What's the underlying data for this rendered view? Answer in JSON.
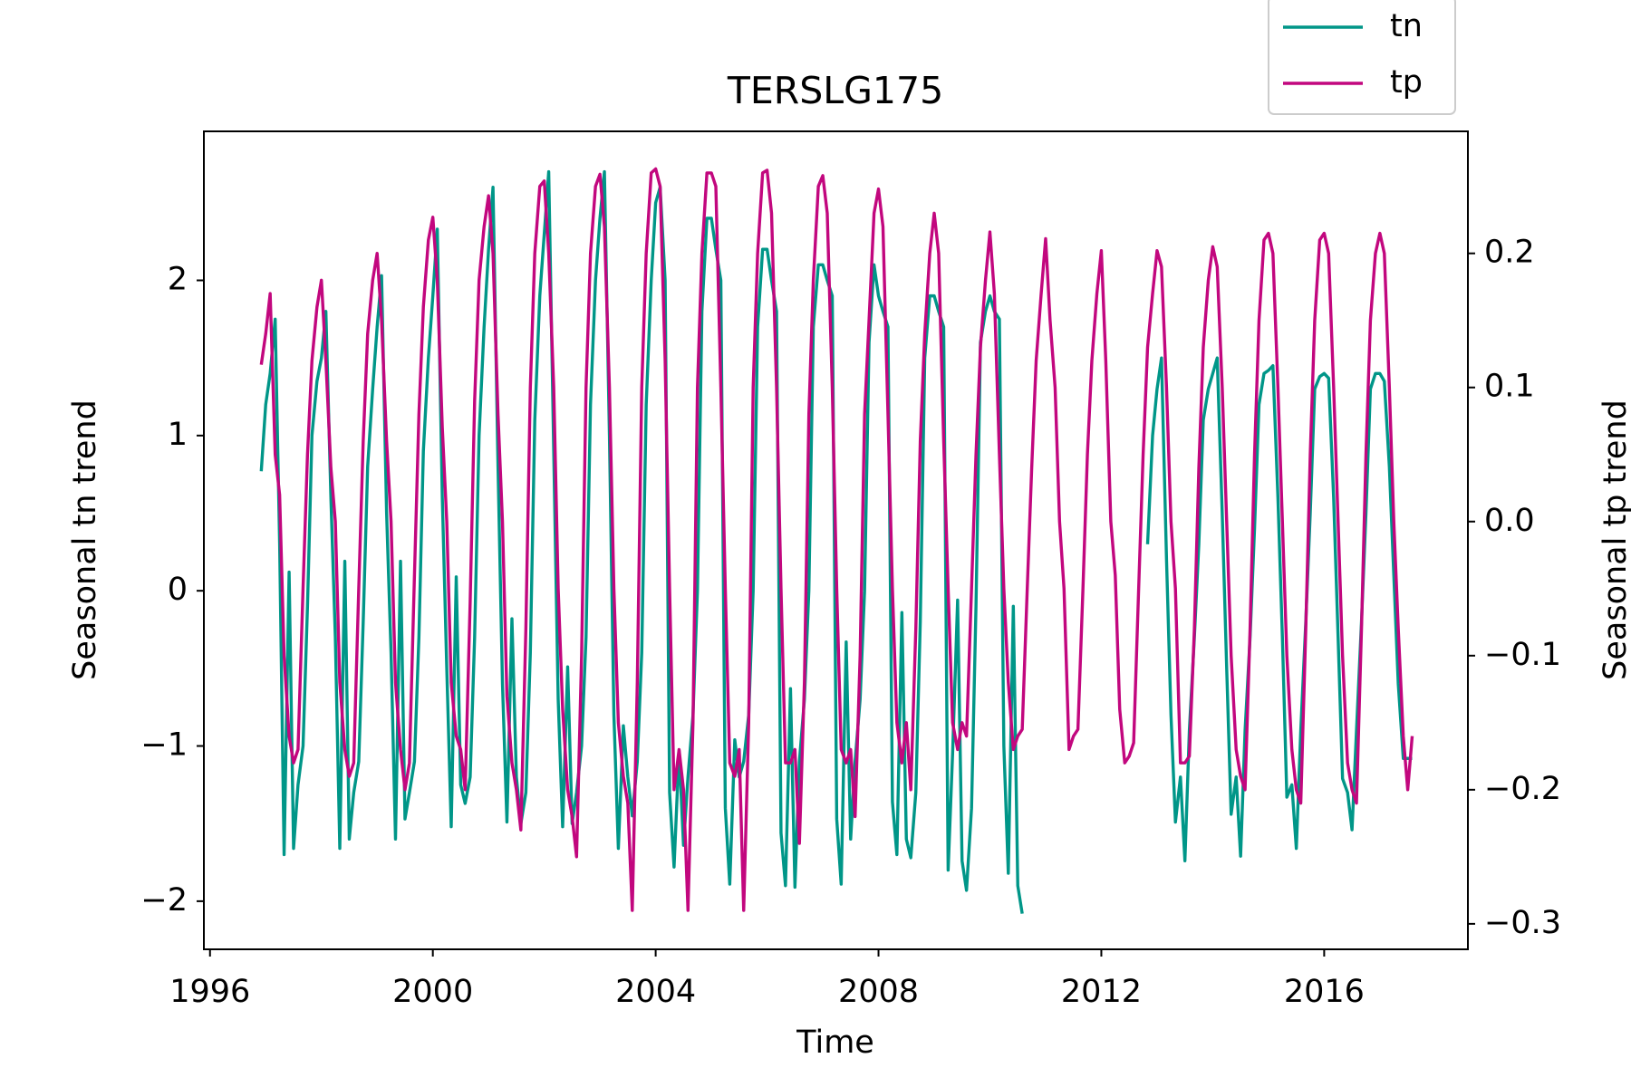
{
  "chart_data": {
    "type": "line",
    "title": "TERSLG175",
    "xlabel": "Time",
    "ylabel": "Seasonal tn trend",
    "y2label": "Seasonal tp trend",
    "legend": "upper right",
    "x": [
      1996.92,
      1997.0,
      1997.08,
      1997.17,
      1997.25,
      1997.33,
      1997.42,
      1997.5,
      1997.58,
      1997.67,
      1997.75,
      1997.83,
      1997.92,
      1998.0,
      1998.08,
      1998.17,
      1998.25,
      1998.33,
      1998.42,
      1998.5,
      1998.58,
      1998.67,
      1998.75,
      1998.83,
      1998.92,
      1999.0,
      1999.08,
      1999.17,
      1999.25,
      1999.33,
      1999.42,
      1999.5,
      1999.58,
      1999.67,
      1999.75,
      1999.83,
      1999.92,
      2000.0,
      2000.08,
      2000.17,
      2000.25,
      2000.33,
      2000.42,
      2000.5,
      2000.58,
      2000.67,
      2000.75,
      2000.83,
      2000.92,
      2001.0,
      2001.08,
      2001.17,
      2001.25,
      2001.33,
      2001.42,
      2001.5,
      2001.58,
      2001.67,
      2001.75,
      2001.83,
      2001.92,
      2002.0,
      2002.08,
      2002.17,
      2002.25,
      2002.33,
      2002.42,
      2002.5,
      2002.58,
      2002.67,
      2002.75,
      2002.83,
      2002.92,
      2003.0,
      2003.08,
      2003.17,
      2003.25,
      2003.33,
      2003.42,
      2003.5,
      2003.58,
      2003.67,
      2003.75,
      2003.83,
      2003.92,
      2004.0,
      2004.08,
      2004.17,
      2004.25,
      2004.33,
      2004.42,
      2004.5,
      2004.58,
      2004.67,
      2004.75,
      2004.83,
      2004.92,
      2005.0,
      2005.08,
      2005.17,
      2005.25,
      2005.33,
      2005.42,
      2005.5,
      2005.58,
      2005.67,
      2005.75,
      2005.83,
      2005.92,
      2006.0,
      2006.08,
      2006.17,
      2006.25,
      2006.33,
      2006.42,
      2006.5,
      2006.58,
      2006.67,
      2006.75,
      2006.83,
      2006.92,
      2007.0,
      2007.08,
      2007.17,
      2007.25,
      2007.33,
      2007.42,
      2007.5,
      2007.58,
      2007.67,
      2007.75,
      2007.83,
      2007.92,
      2008.0,
      2008.08,
      2008.17,
      2008.25,
      2008.33,
      2008.42,
      2008.5,
      2008.58,
      2008.67,
      2008.75,
      2008.83,
      2008.92,
      2009.0,
      2009.08,
      2009.17,
      2009.25,
      2009.33,
      2009.42,
      2009.5,
      2009.58,
      2009.67,
      2009.75,
      2009.83,
      2009.92,
      2010.0,
      2010.08,
      2010.17,
      2010.25,
      2010.33,
      2010.42,
      2010.5,
      2010.58,
      2010.67,
      2010.75,
      2010.83,
      2010.92,
      2011.0,
      2011.08,
      2011.17,
      2011.25,
      2011.33,
      2011.42,
      2011.5,
      2011.58,
      2011.67,
      2011.75,
      2011.83,
      2011.92,
      2012.0,
      2012.08,
      2012.17,
      2012.25,
      2012.33,
      2012.42,
      2012.5,
      2012.58,
      2012.67,
      2012.75,
      2012.83,
      2012.92,
      2013.0,
      2013.08,
      2013.17,
      2013.25,
      2013.33,
      2013.42,
      2013.5,
      2013.58,
      2013.67,
      2013.75,
      2013.83,
      2013.92,
      2014.0,
      2014.08,
      2014.17,
      2014.25,
      2014.33,
      2014.42,
      2014.5,
      2014.58,
      2014.67,
      2014.75,
      2014.83,
      2014.92,
      2015.0,
      2015.08,
      2015.17,
      2015.25,
      2015.33,
      2015.42,
      2015.5,
      2015.58,
      2015.67,
      2015.75,
      2015.83,
      2015.92,
      2016.0,
      2016.08,
      2016.17,
      2016.25,
      2016.33,
      2016.42,
      2016.5,
      2016.58,
      2016.67,
      2016.75,
      2016.83,
      2016.92,
      2017.0,
      2017.08,
      2017.17,
      2017.25,
      2017.33,
      2017.42,
      2017.5,
      2017.58
    ],
    "series": [
      {
        "name": "tn",
        "color": "#009688",
        "values": [
          0.77,
          1.2,
          1.4,
          1.75,
          0.3,
          -1.7,
          0.12,
          -1.66,
          -1.25,
          -1.0,
          -0.1,
          1.0,
          1.35,
          1.5,
          1.8,
          0.6,
          -0.3,
          -1.66,
          0.19,
          -1.6,
          -1.3,
          -1.1,
          -0.2,
          0.8,
          1.3,
          1.7,
          2.03,
          0.5,
          -0.4,
          -1.6,
          0.19,
          -1.47,
          -1.3,
          -1.1,
          -0.3,
          0.9,
          1.5,
          1.9,
          2.33,
          0.6,
          -0.5,
          -1.52,
          0.09,
          -1.25,
          -1.37,
          -1.2,
          -0.3,
          1.0,
          1.7,
          2.2,
          2.6,
          0.8,
          -0.6,
          -1.49,
          -0.18,
          -1.2,
          -1.5,
          -1.3,
          -0.4,
          1.1,
          1.9,
          2.3,
          2.7,
          0.9,
          -0.7,
          -1.52,
          -0.49,
          -1.5,
          -1.3,
          -1.0,
          -0.3,
          1.2,
          2.0,
          2.4,
          2.7,
          1.0,
          -0.8,
          -1.66,
          -0.87,
          -1.2,
          -1.45,
          -1.1,
          -0.4,
          1.2,
          2.0,
          2.5,
          2.6,
          2.0,
          -1.3,
          -1.78,
          -1.03,
          -1.64,
          -1.2,
          -0.8,
          0.0,
          1.8,
          2.4,
          2.4,
          2.2,
          2.0,
          -1.4,
          -1.89,
          -0.96,
          -1.2,
          -1.1,
          -0.8,
          0.0,
          1.7,
          2.2,
          2.2,
          2.0,
          1.8,
          -1.56,
          -1.9,
          -0.63,
          -1.91,
          -1.1,
          -0.7,
          0.0,
          1.7,
          2.1,
          2.1,
          2.0,
          1.9,
          -1.47,
          -1.89,
          -0.33,
          -1.6,
          -1.1,
          -0.7,
          0.0,
          1.6,
          2.1,
          1.9,
          1.8,
          1.7,
          -1.36,
          -1.7,
          -0.14,
          -1.6,
          -1.72,
          -1.3,
          -0.2,
          1.5,
          1.9,
          1.9,
          1.8,
          1.7,
          -1.8,
          -1.05,
          -0.06,
          -1.74,
          -1.93,
          -1.4,
          -0.1,
          1.6,
          1.8,
          1.9,
          1.8,
          1.75,
          -1.0,
          -1.82,
          -0.1,
          -1.9,
          -2.08,
          null,
          null,
          null,
          null,
          null,
          null,
          null,
          null,
          null,
          null,
          null,
          null,
          null,
          null,
          null,
          null,
          null,
          null,
          null,
          null,
          null,
          null,
          null,
          null,
          null,
          null,
          0.3,
          1.0,
          1.3,
          1.5,
          0.2,
          -0.8,
          -1.49,
          -1.2,
          -1.74,
          -0.9,
          -0.3,
          0.3,
          1.1,
          1.3,
          1.4,
          1.5,
          0.5,
          -0.5,
          -1.44,
          -1.2,
          -1.71,
          -0.9,
          -0.3,
          0.4,
          1.2,
          1.4,
          1.42,
          1.45,
          0.6,
          -0.3,
          -1.33,
          -1.25,
          -1.66,
          -0.9,
          -0.2,
          0.5,
          1.3,
          1.38,
          1.4,
          1.37,
          0.6,
          -0.3,
          -1.21,
          -1.3,
          -1.54,
          -0.9,
          -0.2,
          0.5,
          1.3,
          1.4,
          1.4,
          1.35,
          0.8,
          0.1,
          -0.6,
          -1.08,
          -1.08,
          -1.08
        ]
      },
      {
        "name": "tp",
        "color": "#c2077e",
        "axis": "y2",
        "values": [
          0.117,
          0.14,
          0.17,
          0.05,
          0.02,
          -0.1,
          -0.16,
          -0.18,
          -0.17,
          -0.05,
          0.05,
          0.12,
          0.16,
          0.18,
          0.12,
          0.04,
          0.0,
          -0.12,
          -0.17,
          -0.19,
          -0.18,
          -0.05,
          0.06,
          0.14,
          0.18,
          0.2,
          0.15,
          0.06,
          0.0,
          -0.12,
          -0.17,
          -0.2,
          -0.18,
          -0.04,
          0.08,
          0.16,
          0.21,
          0.227,
          0.18,
          0.07,
          0.0,
          -0.12,
          -0.16,
          -0.17,
          -0.2,
          -0.06,
          0.09,
          0.18,
          0.22,
          0.243,
          0.2,
          0.08,
          0.0,
          -0.13,
          -0.18,
          -0.2,
          -0.23,
          -0.08,
          0.1,
          0.2,
          0.25,
          0.254,
          0.2,
          0.1,
          -0.05,
          -0.14,
          -0.2,
          -0.22,
          -0.25,
          -0.1,
          0.1,
          0.2,
          0.25,
          0.259,
          0.22,
          0.1,
          -0.05,
          -0.15,
          -0.19,
          -0.21,
          -0.29,
          -0.12,
          0.1,
          0.2,
          0.26,
          0.263,
          0.25,
          0.12,
          -0.05,
          -0.2,
          -0.17,
          -0.2,
          -0.29,
          -0.15,
          0.1,
          0.2,
          0.26,
          0.26,
          0.25,
          0.1,
          -0.05,
          -0.18,
          -0.19,
          -0.17,
          -0.29,
          -0.15,
          0.1,
          0.2,
          0.26,
          0.262,
          0.23,
          0.1,
          -0.05,
          -0.18,
          -0.18,
          -0.17,
          -0.24,
          -0.12,
          0.08,
          0.18,
          0.25,
          0.258,
          0.23,
          0.1,
          -0.05,
          -0.17,
          -0.18,
          -0.17,
          -0.22,
          -0.1,
          0.08,
          0.15,
          0.23,
          0.248,
          0.22,
          0.08,
          -0.05,
          -0.15,
          -0.18,
          -0.15,
          -0.2,
          -0.08,
          0.06,
          0.14,
          0.2,
          0.23,
          0.2,
          0.06,
          -0.05,
          -0.15,
          -0.17,
          -0.15,
          -0.16,
          -0.05,
          0.05,
          0.13,
          0.18,
          0.216,
          0.17,
          0.05,
          -0.05,
          -0.12,
          -0.17,
          -0.16,
          -0.155,
          -0.05,
          0.04,
          0.12,
          0.17,
          0.211,
          0.15,
          0.1,
          0.0,
          -0.05,
          -0.17,
          -0.16,
          -0.155,
          -0.05,
          0.05,
          0.12,
          0.17,
          0.202,
          0.12,
          0.0,
          -0.04,
          -0.14,
          -0.18,
          -0.175,
          -0.165,
          -0.05,
          0.05,
          0.13,
          0.17,
          0.202,
          0.19,
          0.1,
          0.0,
          -0.05,
          -0.18,
          -0.18,
          -0.175,
          -0.08,
          0.04,
          0.13,
          0.18,
          0.205,
          0.19,
          0.1,
          0.0,
          -0.1,
          -0.17,
          -0.19,
          -0.2,
          -0.08,
          0.05,
          0.15,
          0.21,
          0.215,
          0.2,
          0.1,
          0.0,
          -0.1,
          -0.17,
          -0.2,
          -0.21,
          -0.08,
          0.05,
          0.15,
          0.21,
          0.215,
          0.2,
          0.1,
          0.0,
          -0.1,
          -0.18,
          -0.2,
          -0.21,
          -0.08,
          0.05,
          0.15,
          0.2,
          0.215,
          0.2,
          0.1,
          0.0,
          -0.08,
          -0.16,
          -0.2,
          -0.16
        ]
      }
    ],
    "xlim": [
      1995.89,
      2018.58
    ],
    "xticks": [
      1996,
      2000,
      2004,
      2008,
      2012,
      2016
    ],
    "ylim": [
      -2.31,
      2.96
    ],
    "yticks": [
      {
        "value": -2,
        "label": "−2"
      },
      {
        "value": -1,
        "label": "−1"
      },
      0,
      1,
      2
    ],
    "y2lim": [
      -0.319,
      0.291
    ],
    "y2ticks": [
      {
        "value": -0.3,
        "label": "−0.3"
      },
      {
        "value": -0.2,
        "label": "−0.2"
      },
      {
        "value": -0.1,
        "label": "−0.1"
      },
      {
        "value": 0,
        "label": "0.0"
      },
      0.1,
      0.2
    ]
  }
}
